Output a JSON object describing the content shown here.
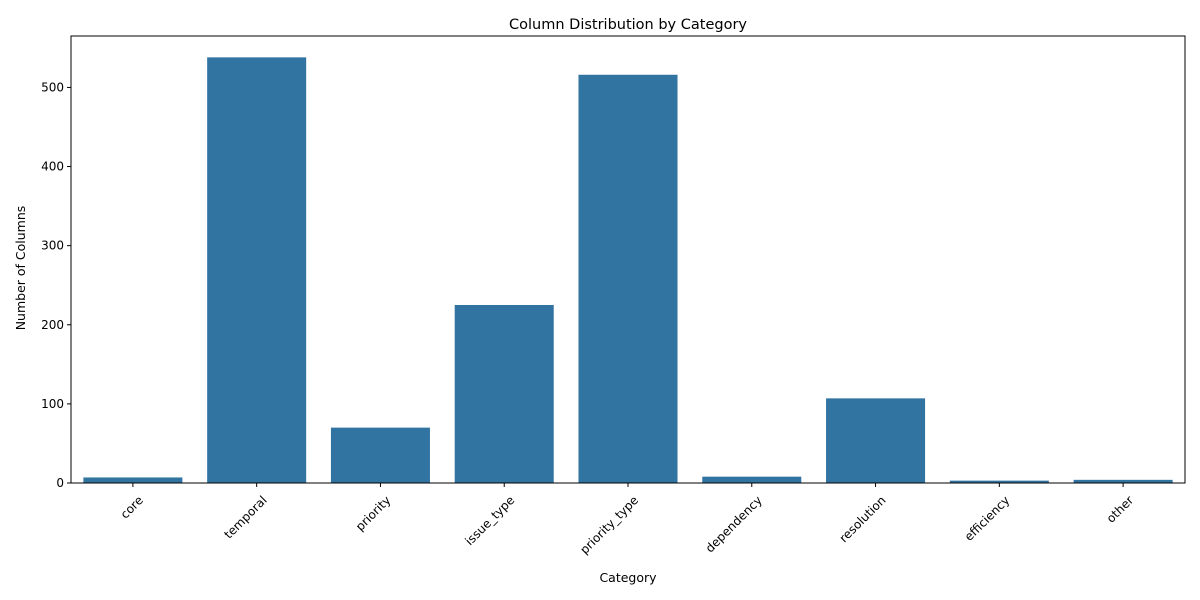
{
  "chart_data": {
    "type": "bar",
    "title": "Column Distribution by Category",
    "xlabel": "Category",
    "ylabel": "Number of Columns",
    "categories": [
      "core",
      "temporal",
      "priority",
      "issue_type",
      "priority_type",
      "dependency",
      "resolution",
      "efficiency",
      "other"
    ],
    "values": [
      7,
      538,
      70,
      225,
      516,
      8,
      107,
      3,
      4
    ],
    "ylim": [
      0,
      565
    ],
    "yticks": [
      0,
      100,
      200,
      300,
      400,
      500
    ],
    "grid": false,
    "legend": "none",
    "bar_color": "#3274a1",
    "x_tick_rotation_deg": 45
  }
}
